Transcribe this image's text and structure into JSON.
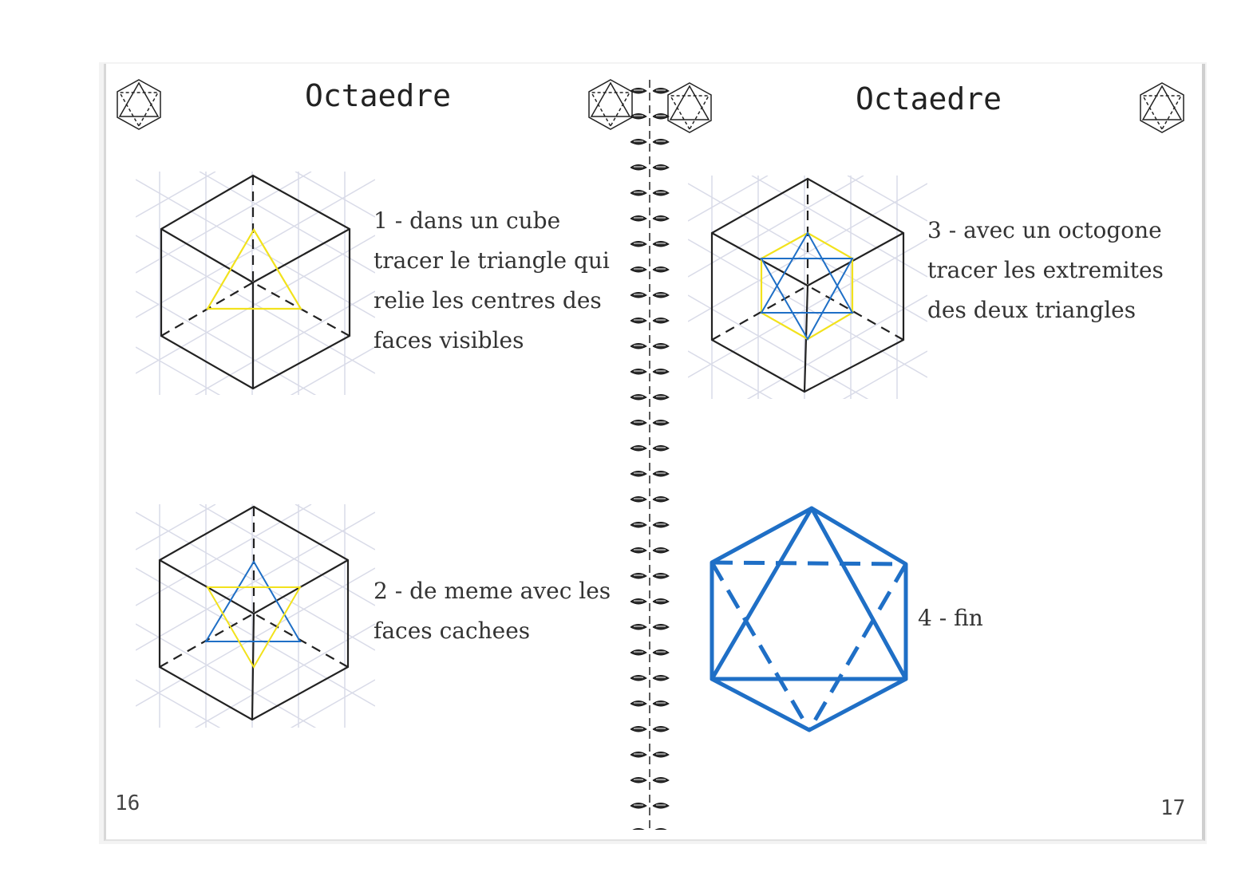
{
  "left_page": {
    "title": "Octaedre",
    "step1_lines": [
      "1 - dans un cube",
      "tracer le triangle qui",
      "relie les centres des",
      "faces visibles"
    ],
    "step2_lines": [
      "2 - de meme avec les",
      "faces cachees"
    ],
    "page_number": "16",
    "corner_icons": [
      "octahedron-icon",
      "octahedron-icon"
    ]
  },
  "right_page": {
    "title": "Octaedre",
    "step3_lines": [
      "3 - avec un octogone",
      "tracer les extremites",
      "des deux triangles"
    ],
    "step4_label": "4 - fin",
    "page_number": "17",
    "corner_icons": [
      "octahedron-icon",
      "octahedron-icon"
    ]
  },
  "colors": {
    "line": "#222222",
    "grid": "#d9dbe8",
    "yellow": "#f2e21c",
    "blue": "#1f6fc6"
  }
}
